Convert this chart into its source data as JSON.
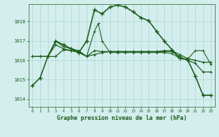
{
  "title": "Graphe pression niveau de la mer (hPa)",
  "background_color": "#d4eeee",
  "grid_color": "#aad4d4",
  "line_color": "#1a5c1a",
  "xlim": [
    -0.5,
    23.5
  ],
  "ylim": [
    1013.6,
    1018.9
  ],
  "yticks": [
    1014,
    1015,
    1016,
    1017,
    1018
  ],
  "xticks": [
    0,
    1,
    2,
    3,
    4,
    5,
    6,
    7,
    8,
    9,
    10,
    11,
    12,
    13,
    14,
    15,
    16,
    17,
    18,
    19,
    20,
    21,
    22,
    23
  ],
  "series1_x": [
    0,
    1,
    2,
    3,
    4,
    5,
    6,
    7,
    8,
    9,
    10,
    11,
    12,
    13,
    14,
    15,
    16,
    17,
    18,
    19,
    20,
    21,
    22,
    23
  ],
  "series1_y": [
    1014.7,
    1015.1,
    1016.2,
    1017.0,
    1016.8,
    1016.6,
    1016.4,
    1017.0,
    1018.6,
    1018.4,
    1018.75,
    1018.85,
    1018.75,
    1018.5,
    1018.2,
    1018.05,
    1017.5,
    1017.0,
    1016.55,
    1016.1,
    1016.05,
    1015.2,
    1014.2,
    1014.2
  ],
  "series2_x": [
    0,
    1,
    2,
    3,
    4,
    5,
    6,
    7,
    8,
    9,
    10,
    11,
    12,
    13,
    14,
    15,
    16,
    17,
    18,
    19,
    20,
    21,
    22,
    23
  ],
  "series2_y": [
    1016.2,
    1016.2,
    1016.2,
    1016.2,
    1016.55,
    1016.5,
    1016.45,
    1016.2,
    1016.3,
    1016.4,
    1016.45,
    1016.45,
    1016.45,
    1016.45,
    1016.45,
    1016.45,
    1016.45,
    1016.5,
    1016.5,
    1016.3,
    1016.1,
    1016.0,
    1015.9,
    1015.9
  ],
  "series3_x": [
    0,
    1,
    2,
    3,
    4,
    5,
    6,
    7,
    8,
    9,
    10,
    11,
    12,
    13,
    14,
    15,
    16,
    17,
    18,
    19,
    20,
    21,
    22,
    23
  ],
  "series3_y": [
    1016.2,
    1016.2,
    1016.2,
    1016.8,
    1016.6,
    1016.5,
    1016.4,
    1016.2,
    1016.5,
    1016.45,
    1016.45,
    1016.45,
    1016.45,
    1016.45,
    1016.45,
    1016.45,
    1016.45,
    1016.45,
    1016.45,
    1016.2,
    1016.0,
    1015.85,
    1015.4,
    1015.4
  ],
  "series4_x": [
    0,
    1,
    2,
    3,
    4,
    5,
    6,
    7,
    8,
    8.5,
    9,
    10,
    11,
    12,
    13,
    14,
    15,
    16,
    17,
    18,
    19,
    20,
    21,
    22,
    23
  ],
  "series4_y": [
    1016.2,
    1016.2,
    1016.2,
    1017.0,
    1016.7,
    1016.6,
    1016.5,
    1016.2,
    1017.5,
    1017.9,
    1017.0,
    1016.4,
    1016.4,
    1016.4,
    1016.4,
    1016.4,
    1016.4,
    1016.4,
    1016.4,
    1016.35,
    1016.1,
    1016.05,
    1016.5,
    1016.5,
    1015.8
  ]
}
